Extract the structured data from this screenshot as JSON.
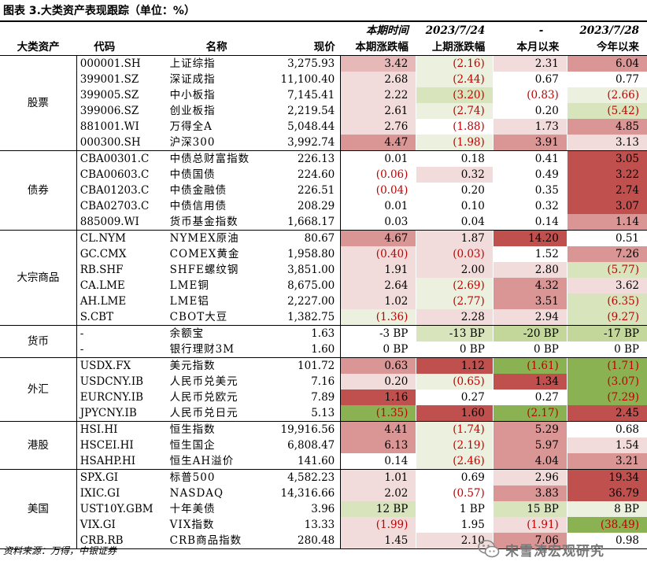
{
  "title": "图表 3.大类资产表现跟踪（单位：%）",
  "headers": {
    "row1": {
      "change": "本期时间",
      "prev": "2023/7/24",
      "month": "-",
      "ytd": "2023/7/28"
    },
    "row2": {
      "category": "大类资产",
      "code": "代码",
      "name": "名称",
      "price": "现价",
      "change": "本期涨跌幅",
      "prev": "上期涨跌幅",
      "month": "本月以来",
      "ytd": "今年以来"
    }
  },
  "colors": {
    "strong_red": "#c0504d",
    "mid_red": "#da9694",
    "light_red": "#f2dcdb",
    "strong_green": "#8ab152",
    "mid_green": "#c4d79b",
    "light_green": "#ebf1de",
    "negative_text": "#c00000"
  },
  "groups": [
    {
      "category": "股票",
      "rows": [
        {
          "code": "000001.SH",
          "name": "上证综指",
          "price": "3,275.93",
          "cells": [
            {
              "v": "3.42",
              "bg": "#e6b8b7"
            },
            {
              "v": "(2.16)",
              "bg": "#ebf1de"
            },
            {
              "v": "2.31",
              "bg": "#f2dcdb"
            },
            {
              "v": "6.04",
              "bg": "#da9694"
            }
          ]
        },
        {
          "code": "399001.SZ",
          "name": "深证成指",
          "price": "11,100.40",
          "cells": [
            {
              "v": "2.68",
              "bg": "#f2dcdb"
            },
            {
              "v": "(2.44)",
              "bg": "#ebf1de"
            },
            {
              "v": "0.67",
              "bg": "#ffffff"
            },
            {
              "v": "0.77",
              "bg": "#ffffff"
            }
          ]
        },
        {
          "code": "399005.SZ",
          "name": "中小板指",
          "price": "7,145.41",
          "cells": [
            {
              "v": "2.22",
              "bg": "#f2dcdb"
            },
            {
              "v": "(3.20)",
              "bg": "#d8e4bc"
            },
            {
              "v": "(0.83)",
              "bg": "#ffffff"
            },
            {
              "v": "(2.66)",
              "bg": "#ebf1de"
            }
          ]
        },
        {
          "code": "399006.SZ",
          "name": "创业板指",
          "price": "2,219.54",
          "cells": [
            {
              "v": "2.61",
              "bg": "#f2dcdb"
            },
            {
              "v": "(2.74)",
              "bg": "#ebf1de"
            },
            {
              "v": "0.20",
              "bg": "#ffffff"
            },
            {
              "v": "(5.42)",
              "bg": "#d8e4bc"
            }
          ]
        },
        {
          "code": "881001.WI",
          "name": "万得全A",
          "price": "5,048.44",
          "cells": [
            {
              "v": "2.76",
              "bg": "#f2dcdb"
            },
            {
              "v": "(1.88)",
              "bg": "#ffffff"
            },
            {
              "v": "1.73",
              "bg": "#f2dcdb"
            },
            {
              "v": "4.85",
              "bg": "#da9694"
            }
          ]
        },
        {
          "code": "000300.SH",
          "name": "沪深300",
          "price": "3,992.74",
          "cells": [
            {
              "v": "4.47",
              "bg": "#da9694"
            },
            {
              "v": "(1.98)",
              "bg": "#ebf1de"
            },
            {
              "v": "3.91",
              "bg": "#da9694"
            },
            {
              "v": "3.13",
              "bg": "#f2dcdb"
            }
          ]
        }
      ]
    },
    {
      "category": "债券",
      "rows": [
        {
          "code": "CBA00301.C",
          "name": "中债总财富指数",
          "price": "226.13",
          "cells": [
            {
              "v": "0.01",
              "bg": "#ffffff"
            },
            {
              "v": "0.18",
              "bg": "#ffffff"
            },
            {
              "v": "0.41",
              "bg": "#ffffff"
            },
            {
              "v": "3.05",
              "bg": "#c0504d"
            }
          ]
        },
        {
          "code": "CBA00603.C",
          "name": "中债国债",
          "price": "224.60",
          "cells": [
            {
              "v": "(0.06)",
              "bg": "#ffffff"
            },
            {
              "v": "0.32",
              "bg": "#f2dcdb"
            },
            {
              "v": "0.49",
              "bg": "#ffffff"
            },
            {
              "v": "3.22",
              "bg": "#c0504d"
            }
          ]
        },
        {
          "code": "CBA01203.C",
          "name": "中债金融债",
          "price": "226.51",
          "cells": [
            {
              "v": "(0.04)",
              "bg": "#ffffff"
            },
            {
              "v": "0.20",
              "bg": "#ffffff"
            },
            {
              "v": "0.35",
              "bg": "#ffffff"
            },
            {
              "v": "2.74",
              "bg": "#c0504d"
            }
          ]
        },
        {
          "code": "CBA02703.C",
          "name": "中债信用债",
          "price": "208.29",
          "cells": [
            {
              "v": "0.01",
              "bg": "#ffffff"
            },
            {
              "v": "0.10",
              "bg": "#ffffff"
            },
            {
              "v": "0.32",
              "bg": "#ffffff"
            },
            {
              "v": "3.07",
              "bg": "#c0504d"
            }
          ]
        },
        {
          "code": "885009.WI",
          "name": "货币基金指数",
          "price": "1,668.17",
          "cells": [
            {
              "v": "0.03",
              "bg": "#ffffff"
            },
            {
              "v": "0.04",
              "bg": "#ffffff"
            },
            {
              "v": "0.14",
              "bg": "#ffffff"
            },
            {
              "v": "1.14",
              "bg": "#da9694"
            }
          ]
        }
      ]
    },
    {
      "category": "大宗商品",
      "rows": [
        {
          "code": "CL.NYM",
          "name": "NYMEX原油",
          "price": "80.67",
          "cells": [
            {
              "v": "4.67",
              "bg": "#da9694"
            },
            {
              "v": "1.87",
              "bg": "#f2dcdb"
            },
            {
              "v": "14.20",
              "bg": "#c0504d"
            },
            {
              "v": "0.51",
              "bg": "#ffffff"
            }
          ]
        },
        {
          "code": "GC.CMX",
          "name": "COMEX黄金",
          "price": "1,958.80",
          "cells": [
            {
              "v": "(0.40)",
              "bg": "#f2dcdb"
            },
            {
              "v": "(0.03)",
              "bg": "#f2dcdb"
            },
            {
              "v": "1.52",
              "bg": "#ffffff"
            },
            {
              "v": "7.26",
              "bg": "#da9694"
            }
          ]
        },
        {
          "code": "RB.SHF",
          "name": "SHFE螺纹钢",
          "price": "3,851.00",
          "cells": [
            {
              "v": "1.91",
              "bg": "#f2dcdb"
            },
            {
              "v": "2.00",
              "bg": "#f2dcdb"
            },
            {
              "v": "2.80",
              "bg": "#f2dcdb"
            },
            {
              "v": "(5.77)",
              "bg": "#d8e4bc"
            }
          ]
        },
        {
          "code": "CA.LME",
          "name": "LME铜",
          "price": "8,675.00",
          "cells": [
            {
              "v": "2.64",
              "bg": "#f2dcdb"
            },
            {
              "v": "(2.69)",
              "bg": "#ebf1de"
            },
            {
              "v": "4.32",
              "bg": "#da9694"
            },
            {
              "v": "3.62",
              "bg": "#f2dcdb"
            }
          ]
        },
        {
          "code": "AH.LME",
          "name": "LME铝",
          "price": "2,227.00",
          "cells": [
            {
              "v": "1.02",
              "bg": "#f2dcdb"
            },
            {
              "v": "(2.77)",
              "bg": "#ebf1de"
            },
            {
              "v": "3.51",
              "bg": "#da9694"
            },
            {
              "v": "(6.35)",
              "bg": "#d8e4bc"
            }
          ]
        },
        {
          "code": "S.CBT",
          "name": "CBOT大豆",
          "price": "1,382.75",
          "cells": [
            {
              "v": "(1.36)",
              "bg": "#ebf1de"
            },
            {
              "v": "2.28",
              "bg": "#f2dcdb"
            },
            {
              "v": "2.94",
              "bg": "#f2dcdb"
            },
            {
              "v": "(9.27)",
              "bg": "#d8e4bc"
            }
          ]
        }
      ]
    },
    {
      "category": "货币",
      "rows": [
        {
          "code": "-",
          "name": "余额宝",
          "price": "1.63",
          "cells": [
            {
              "v": "-3 BP",
              "bg": "#ffffff"
            },
            {
              "v": "-13 BP",
              "bg": "#d8e4bc"
            },
            {
              "v": "-20 BP",
              "bg": "#c4d79b"
            },
            {
              "v": "-17 BP",
              "bg": "#c4d79b"
            }
          ]
        },
        {
          "code": "-",
          "name": "银行理财3M",
          "price": "1.60",
          "cells": [
            {
              "v": "0 BP",
              "bg": "#ffffff"
            },
            {
              "v": "0 BP",
              "bg": "#ffffff"
            },
            {
              "v": "0 BP",
              "bg": "#ffffff"
            },
            {
              "v": "0 BP",
              "bg": "#ffffff"
            }
          ]
        }
      ]
    },
    {
      "category": "外汇",
      "rows": [
        {
          "code": "USDX.FX",
          "name": "美元指数",
          "price": "101.72",
          "cells": [
            {
              "v": "0.63",
              "bg": "#da9694"
            },
            {
              "v": "1.12",
              "bg": "#c0504d"
            },
            {
              "v": "(1.61)",
              "bg": "#8ab152"
            },
            {
              "v": "(1.71)",
              "bg": "#8ab152"
            }
          ]
        },
        {
          "code": "USDCNY.IB",
          "name": "人民币兑美元",
          "price": "7.16",
          "cells": [
            {
              "v": "0.20",
              "bg": "#f2dcdb"
            },
            {
              "v": "(0.65)",
              "bg": "#ebf1de"
            },
            {
              "v": "1.34",
              "bg": "#c0504d"
            },
            {
              "v": "(3.07)",
              "bg": "#8ab152"
            }
          ]
        },
        {
          "code": "EURCNY.IB",
          "name": "人民币兑欧元",
          "price": "7.89",
          "cells": [
            {
              "v": "1.16",
              "bg": "#c0504d"
            },
            {
              "v": "0.27",
              "bg": "#ffffff"
            },
            {
              "v": "0.27",
              "bg": "#ffffff"
            },
            {
              "v": "(7.29)",
              "bg": "#8ab152"
            }
          ]
        },
        {
          "code": "JPYCNY.IB",
          "name": "人民币兑日元",
          "price": "5.13",
          "cells": [
            {
              "v": "(1.35)",
              "bg": "#8ab152"
            },
            {
              "v": "1.60",
              "bg": "#c0504d"
            },
            {
              "v": "(2.17)",
              "bg": "#8ab152"
            },
            {
              "v": "2.45",
              "bg": "#c0504d"
            }
          ]
        }
      ]
    },
    {
      "category": "港股",
      "rows": [
        {
          "code": "HSI.HI",
          "name": "恒生指数",
          "price": "19,916.56",
          "cells": [
            {
              "v": "4.41",
              "bg": "#da9694"
            },
            {
              "v": "(1.74)",
              "bg": "#ebf1de"
            },
            {
              "v": "5.29",
              "bg": "#da9694"
            },
            {
              "v": "0.68",
              "bg": "#ffffff"
            }
          ]
        },
        {
          "code": "HSCEI.HI",
          "name": "恒生国企",
          "price": "6,808.47",
          "cells": [
            {
              "v": "6.13",
              "bg": "#da9694"
            },
            {
              "v": "(2.19)",
              "bg": "#ebf1de"
            },
            {
              "v": "5.97",
              "bg": "#da9694"
            },
            {
              "v": "1.54",
              "bg": "#f2dcdb"
            }
          ]
        },
        {
          "code": "HSAHP.HI",
          "name": "恒生AH溢价",
          "price": "141.60",
          "cells": [
            {
              "v": "0.14",
              "bg": "#ffffff"
            },
            {
              "v": "(2.46)",
              "bg": "#ebf1de"
            },
            {
              "v": "4.04",
              "bg": "#da9694"
            },
            {
              "v": "3.21",
              "bg": "#da9694"
            }
          ]
        }
      ]
    },
    {
      "category": "美国",
      "rows": [
        {
          "code": "SPX.GI",
          "name": "标普500",
          "price": "4,582.23",
          "cells": [
            {
              "v": "1.01",
              "bg": "#f2dcdb"
            },
            {
              "v": "0.69",
              "bg": "#ffffff"
            },
            {
              "v": "2.96",
              "bg": "#f2dcdb"
            },
            {
              "v": "19.34",
              "bg": "#c0504d"
            }
          ]
        },
        {
          "code": "IXIC.GI",
          "name": "NASDAQ",
          "price": "14,316.66",
          "cells": [
            {
              "v": "2.02",
              "bg": "#f2dcdb"
            },
            {
              "v": "(0.57)",
              "bg": "#ffffff"
            },
            {
              "v": "3.83",
              "bg": "#da9694"
            },
            {
              "v": "36.79",
              "bg": "#c0504d"
            }
          ]
        },
        {
          "code": "UST10Y.GBM",
          "name": "十年美债",
          "price": "3.96",
          "cells": [
            {
              "v": "12 BP",
              "bg": "#d8e4bc"
            },
            {
              "v": "1 BP",
              "bg": "#ffffff"
            },
            {
              "v": "15 BP",
              "bg": "#d8e4bc"
            },
            {
              "v": "8 BP",
              "bg": "#ebf1de"
            }
          ]
        },
        {
          "code": "VIX.GI",
          "name": "VIX指数",
          "price": "13.33",
          "cells": [
            {
              "v": "(1.99)",
              "bg": "#f2dcdb"
            },
            {
              "v": "1.95",
              "bg": "#ffffff"
            },
            {
              "v": "(1.91)",
              "bg": "#f2dcdb"
            },
            {
              "v": "(38.49)",
              "bg": "#8ab152"
            }
          ]
        },
        {
          "code": "CRB.RB",
          "name": "CRB商品指数",
          "price": "280.48",
          "cells": [
            {
              "v": "1.45",
              "bg": "#f2dcdb"
            },
            {
              "v": "2.10",
              "bg": "#f2dcdb"
            },
            {
              "v": "7.06",
              "bg": "#da9694"
            },
            {
              "v": "0.98",
              "bg": "#ffffff"
            }
          ]
        }
      ]
    }
  ],
  "footer": "资料来源：万得，中银证券",
  "watermark": {
    "text": "宋雪涛宏观研究",
    "icon": "wechat-icon"
  }
}
